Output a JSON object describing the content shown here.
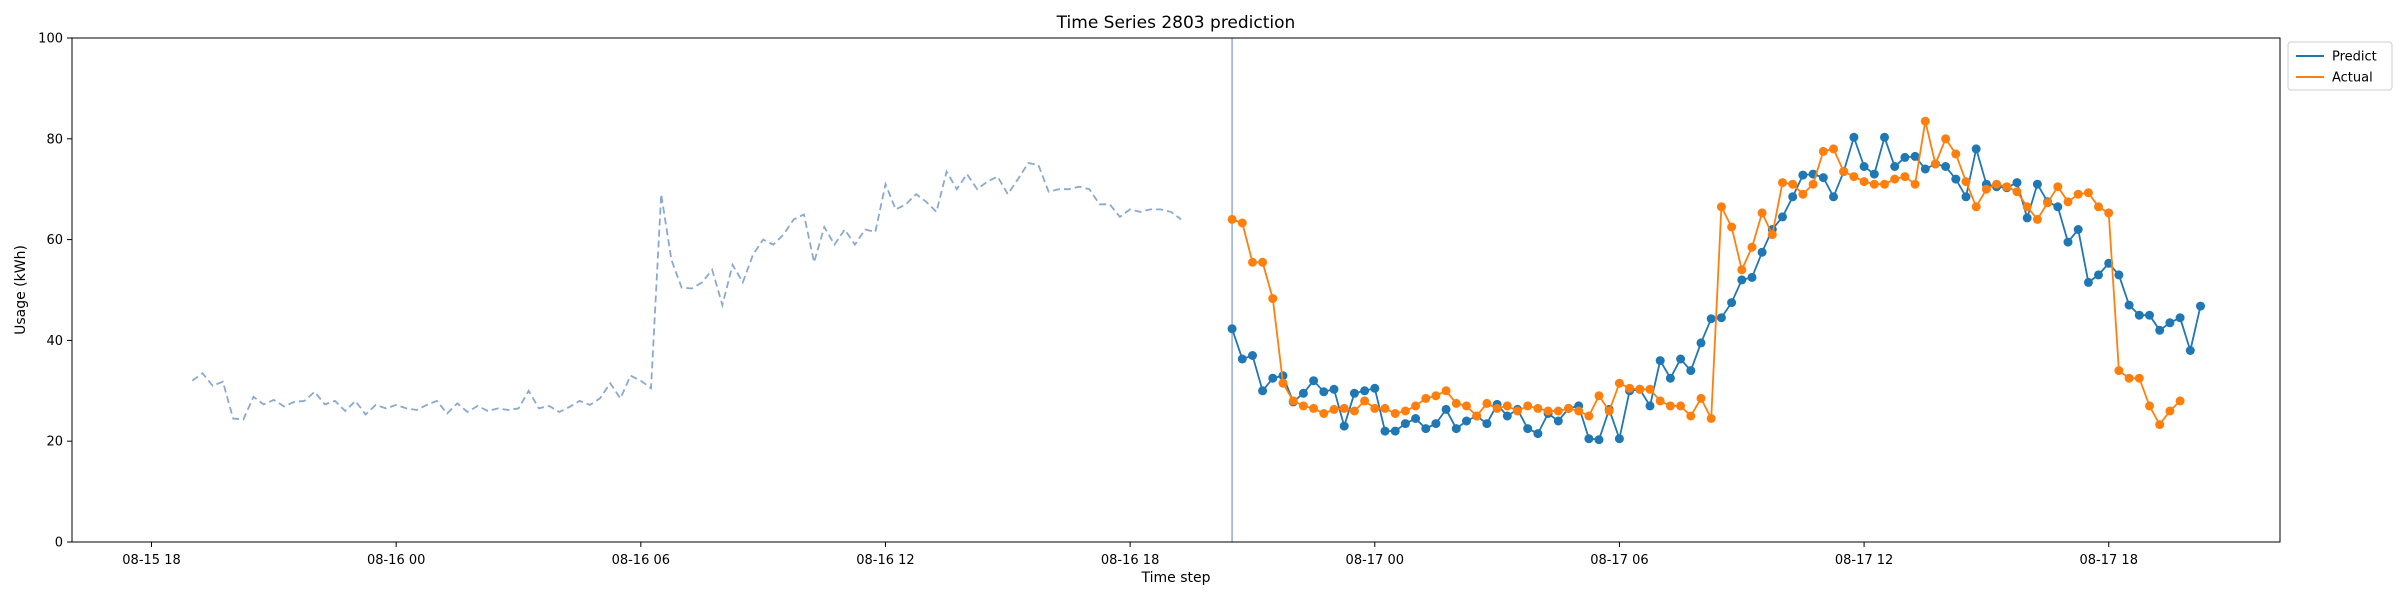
{
  "chart_data": {
    "type": "line",
    "title": "Time Series 2803 prediction",
    "xlabel": "Time step",
    "ylabel": "Usage (kWh)",
    "ylim": [
      0,
      100
    ],
    "yticks": [
      0,
      20,
      40,
      60,
      80,
      100
    ],
    "x_range_hours": [
      -1.95,
      52.2
    ],
    "xticks": [
      {
        "label": "08-15 18",
        "hour": 0
      },
      {
        "label": "08-16 00",
        "hour": 6
      },
      {
        "label": "08-16 06",
        "hour": 12
      },
      {
        "label": "08-16 12",
        "hour": 18
      },
      {
        "label": "08-16 18",
        "hour": 24
      },
      {
        "label": "08-17 00",
        "hour": 30
      },
      {
        "label": "08-17 06",
        "hour": 36
      },
      {
        "label": "08-17 12",
        "hour": 42
      },
      {
        "label": "08-17 18",
        "hour": 48
      }
    ],
    "grid": false,
    "legend_placement": "upper right outside",
    "forecast_start_hour": 26.5,
    "step_hours": 0.25,
    "history": {
      "start_hour": 1,
      "color": "#8aa9d0",
      "values": [
        32,
        33.5,
        31,
        31.8,
        24.5,
        24.3,
        28.8,
        27.3,
        28.2,
        26.9,
        27.8,
        28,
        29.8,
        27.3,
        28,
        26,
        28,
        25.3,
        27.2,
        26.5,
        27.2,
        26.5,
        26.2,
        27.2,
        28,
        25.5,
        27.5,
        25.8,
        27,
        26,
        26.5,
        26.2,
        26.5,
        30,
        26.5,
        27,
        25.8,
        26.8,
        28,
        27.2,
        28.5,
        31.5,
        28.5,
        33,
        32,
        30.5,
        69,
        56,
        50.5,
        50.3,
        51.5,
        54,
        47,
        55,
        51.5,
        57,
        60,
        59,
        61,
        64,
        65,
        55.5,
        62.5,
        59,
        62,
        59,
        62,
        61.5,
        71,
        66,
        67,
        69,
        67.5,
        65.5,
        73.5,
        70,
        73,
        70,
        71.5,
        72.5,
        69,
        72,
        75.2,
        74.8,
        69.5,
        70,
        70,
        70.5,
        70,
        67,
        67,
        64.5,
        66,
        65.5,
        66,
        66,
        65.5,
        64
      ]
    },
    "series": [
      {
        "name": "Predict",
        "color": "#1f77b4",
        "start_hour": 26.5,
        "values": [
          42.3,
          36.3,
          37,
          30,
          32.5,
          33,
          27.8,
          29.5,
          32,
          29.8,
          30.3,
          23,
          29.5,
          30,
          30.5,
          22,
          22,
          23.5,
          24.5,
          22.5,
          23.5,
          26.3,
          22.5,
          24,
          25,
          23.5,
          27.3,
          25,
          26.3,
          22.5,
          21.5,
          25.5,
          24,
          26.5,
          27,
          20.5,
          20.3,
          26.3,
          20.5,
          30,
          30.3,
          27,
          36,
          32.5,
          36.3,
          34,
          39.5,
          44.3,
          44.5,
          47.5,
          52,
          52.5,
          57.5,
          62,
          64.5,
          68.5,
          72.8,
          73,
          72.3,
          68.5,
          73.5,
          80.3,
          74.5,
          73,
          80.3,
          74.5,
          76.3,
          76.5,
          74,
          75,
          74.5,
          72,
          68.5,
          78,
          71,
          70.5,
          70.3,
          71.3,
          64.3,
          71,
          67.5,
          66.5,
          59.5,
          62,
          51.5,
          53,
          55.3,
          53,
          47,
          45,
          45,
          42,
          43.5,
          44.5,
          38,
          46.8
        ]
      },
      {
        "name": "Actual",
        "color": "#ff7f0e",
        "start_hour": 26.5,
        "values": [
          64,
          63.3,
          55.5,
          55.5,
          48.3,
          31.5,
          28,
          27,
          26.5,
          25.5,
          26.3,
          26.5,
          26,
          28,
          26.5,
          26.5,
          25.5,
          26,
          27,
          28.5,
          29,
          30,
          27.5,
          27,
          25,
          27.5,
          26.5,
          27,
          26,
          27,
          26.5,
          26,
          26,
          26.5,
          26,
          25,
          29,
          26,
          31.5,
          30.5,
          30.3,
          30.3,
          28,
          27,
          27,
          25,
          28.5,
          24.5,
          66.5,
          62.5,
          54,
          58.5,
          65.3,
          61,
          71.3,
          71,
          69,
          71,
          77.5,
          78,
          73.5,
          72.5,
          71.5,
          71,
          71,
          72,
          72.5,
          71,
          83.5,
          75,
          80,
          77,
          71.5,
          66.5,
          70,
          71,
          70.5,
          69.5,
          66.5,
          64,
          67.3,
          70.5,
          67.5,
          69,
          69.3,
          66.5,
          65.3,
          34,
          32.5,
          32.5,
          27,
          23.3,
          26,
          28
        ]
      }
    ]
  }
}
